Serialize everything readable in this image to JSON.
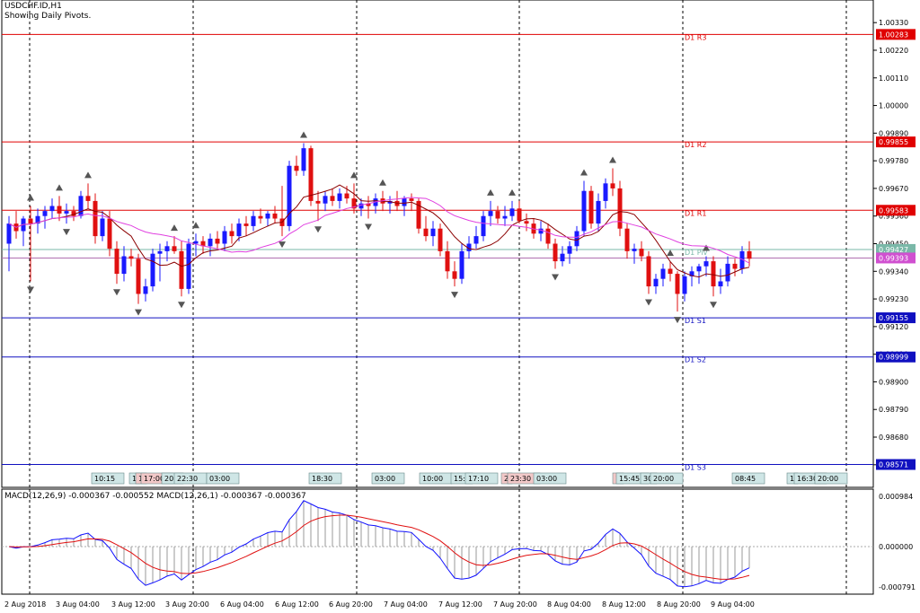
{
  "header": {
    "symbol_line": "USDCHF.ID,H1",
    "indicator_line": "Showing Daily Pivots."
  },
  "macd_header": "MACD(12,26,9) -0.000367 -0.000552 MACD(12,26,1) -0.000367 -0.000367",
  "colors": {
    "bull": "#1a1aff",
    "bear": "#e01010",
    "ma_fast": "#8b0000",
    "ma_slow": "#e040e0",
    "pivot_res": "#e00000",
    "pivot_sup": "#1010c0",
    "macd_main": "#1010ff",
    "macd_signal": "#e01010",
    "macd_hist": "#9a9a9a",
    "axis": "#000000"
  },
  "chart_data": [
    {
      "type": "candlestick",
      "symbol": "USDCHF.ID",
      "timeframe": "H1",
      "ylim": [
        0.9848,
        1.0042
      ],
      "y_ticks": [
        "1.00330",
        "1.00220",
        "1.00110",
        "1.00000",
        "0.99890",
        "0.99780",
        "0.99670",
        "0.99560",
        "0.99450",
        "0.99340",
        "0.99230",
        "0.99120",
        "0.99010",
        "0.98900",
        "0.98790",
        "0.98680",
        "0.98570"
      ],
      "x_labels": [
        "2 Aug 2018",
        "3 Aug 04:00",
        "3 Aug 12:00",
        "3 Aug 20:00",
        "6 Aug 04:00",
        "6 Aug 12:00",
        "6 Aug 20:00",
        "7 Aug 04:00",
        "7 Aug 12:00",
        "7 Aug 20:00",
        "8 Aug 04:00",
        "8 Aug 12:00",
        "8 Aug 20:00",
        "9 Aug 04:00"
      ],
      "pivots": [
        {
          "name": "D1 R3",
          "value": 1.00283,
          "label": "1.00283",
          "kind": "res"
        },
        {
          "name": "D1 R2",
          "value": 0.99855,
          "label": "0.99855",
          "kind": "res"
        },
        {
          "name": "D1 R1",
          "value": 0.99583,
          "label": "0.99583",
          "kind": "res"
        },
        {
          "name": "D1 Pivot",
          "value": 0.99427,
          "label": "0.99427",
          "kind": "piv"
        },
        {
          "name": "D1 S1",
          "value": 0.99155,
          "label": "0.99155",
          "kind": "sup"
        },
        {
          "name": "D1 S2",
          "value": 0.98999,
          "label": "0.98999",
          "kind": "sup"
        },
        {
          "name": "D1 S3",
          "value": 0.98571,
          "label": "0.98571",
          "kind": "sup"
        }
      ],
      "bid_label": "0.99393",
      "bid_value": 0.99393,
      "event_labels": [
        "10:15",
        "1",
        "1",
        "17:00",
        "20:",
        "22:30",
        "03:00",
        "18:30",
        "03:00",
        "10:00",
        "15:",
        "17:10",
        "2",
        "23:30",
        "03:00",
        "1",
        "15:45",
        "30",
        "20:00",
        "08:45",
        "1",
        "16:30",
        "20:00"
      ],
      "ohlc": [
        [
          0.9945,
          0.9956,
          0.9934,
          0.9953
        ],
        [
          0.9953,
          0.9958,
          0.9947,
          0.995
        ],
        [
          0.995,
          0.9956,
          0.9944,
          0.9955
        ],
        [
          0.9955,
          0.996,
          0.993,
          0.9953
        ],
        [
          0.9953,
          0.9959,
          0.9949,
          0.9956
        ],
        [
          0.9956,
          0.996,
          0.9951,
          0.9958
        ],
        [
          0.9958,
          0.9963,
          0.9955,
          0.996
        ],
        [
          0.996,
          0.9964,
          0.9954,
          0.9957
        ],
        [
          0.9957,
          0.9961,
          0.9953,
          0.9958
        ],
        [
          0.9958,
          0.996,
          0.9954,
          0.9956
        ],
        [
          0.9956,
          0.9966,
          0.9955,
          0.9964
        ],
        [
          0.9964,
          0.9969,
          0.9959,
          0.9962
        ],
        [
          0.9962,
          0.9965,
          0.9945,
          0.9948
        ],
        [
          0.9948,
          0.9958,
          0.9946,
          0.9955
        ],
        [
          0.9955,
          0.9958,
          0.994,
          0.9943
        ],
        [
          0.9943,
          0.9946,
          0.9929,
          0.9933
        ],
        [
          0.9933,
          0.9944,
          0.993,
          0.994
        ],
        [
          0.994,
          0.9943,
          0.9936,
          0.9939
        ],
        [
          0.9939,
          0.9941,
          0.9921,
          0.9925
        ],
        [
          0.9925,
          0.9931,
          0.9922,
          0.9928
        ],
        [
          0.9928,
          0.9943,
          0.9926,
          0.9941
        ],
        [
          0.9941,
          0.9945,
          0.993,
          0.9942
        ],
        [
          0.9942,
          0.9946,
          0.9938,
          0.9944
        ],
        [
          0.9944,
          0.9948,
          0.9941,
          0.9942
        ],
        [
          0.9942,
          0.9946,
          0.9924,
          0.9927
        ],
        [
          0.9927,
          0.9947,
          0.9925,
          0.9945
        ],
        [
          0.9945,
          0.9949,
          0.994,
          0.9946
        ],
        [
          0.9946,
          0.9948,
          0.9941,
          0.9944
        ],
        [
          0.9944,
          0.9949,
          0.994,
          0.9947
        ],
        [
          0.9947,
          0.995,
          0.9943,
          0.9945
        ],
        [
          0.9945,
          0.9952,
          0.9942,
          0.995
        ],
        [
          0.995,
          0.9953,
          0.9945,
          0.9948
        ],
        [
          0.9948,
          0.9955,
          0.9946,
          0.9953
        ],
        [
          0.9953,
          0.9956,
          0.9948,
          0.9952
        ],
        [
          0.9952,
          0.9958,
          0.995,
          0.9956
        ],
        [
          0.9956,
          0.9959,
          0.9953,
          0.9955
        ],
        [
          0.9955,
          0.9958,
          0.9952,
          0.9957
        ],
        [
          0.9957,
          0.996,
          0.9953,
          0.9955
        ],
        [
          0.9955,
          0.9968,
          0.9948,
          0.9952
        ],
        [
          0.9952,
          0.9978,
          0.995,
          0.9976
        ],
        [
          0.9976,
          0.998,
          0.9972,
          0.9974
        ],
        [
          0.9974,
          0.9985,
          0.9972,
          0.9983
        ],
        [
          0.9983,
          0.9984,
          0.996,
          0.9962
        ],
        [
          0.9962,
          0.9966,
          0.9954,
          0.9961
        ],
        [
          0.9961,
          0.9966,
          0.9958,
          0.9964
        ],
        [
          0.9964,
          0.9967,
          0.996,
          0.9962
        ],
        [
          0.9962,
          0.9967,
          0.9959,
          0.9965
        ],
        [
          0.9965,
          0.9968,
          0.9961,
          0.9963
        ],
        [
          0.9963,
          0.9969,
          0.9957,
          0.9959
        ],
        [
          0.9959,
          0.9963,
          0.9956,
          0.9961
        ],
        [
          0.9961,
          0.9964,
          0.9955,
          0.996
        ],
        [
          0.996,
          0.9965,
          0.9957,
          0.9963
        ],
        [
          0.9963,
          0.9966,
          0.9958,
          0.9961
        ],
        [
          0.9961,
          0.9964,
          0.9957,
          0.9962
        ],
        [
          0.9962,
          0.9966,
          0.9958,
          0.996
        ],
        [
          0.996,
          0.9964,
          0.9956,
          0.9963
        ],
        [
          0.9963,
          0.9965,
          0.9958,
          0.9962
        ],
        [
          0.9962,
          0.9963,
          0.9949,
          0.9951
        ],
        [
          0.9951,
          0.9956,
          0.9946,
          0.9948
        ],
        [
          0.9948,
          0.9954,
          0.9944,
          0.9951
        ],
        [
          0.9951,
          0.9953,
          0.994,
          0.9942
        ],
        [
          0.9942,
          0.9946,
          0.9931,
          0.9934
        ],
        [
          0.9934,
          0.9938,
          0.9928,
          0.9931
        ],
        [
          0.9931,
          0.9945,
          0.9929,
          0.9942
        ],
        [
          0.9942,
          0.9948,
          0.9939,
          0.9945
        ],
        [
          0.9945,
          0.9952,
          0.9943,
          0.9948
        ],
        [
          0.9948,
          0.9958,
          0.9946,
          0.9956
        ],
        [
          0.9956,
          0.9962,
          0.9952,
          0.9958
        ],
        [
          0.9958,
          0.996,
          0.9953,
          0.9955
        ],
        [
          0.9955,
          0.996,
          0.9952,
          0.9956
        ],
        [
          0.9956,
          0.9962,
          0.9954,
          0.9959
        ],
        [
          0.9959,
          0.9962,
          0.9953,
          0.9954
        ],
        [
          0.9954,
          0.9957,
          0.995,
          0.9953
        ],
        [
          0.9953,
          0.9955,
          0.9947,
          0.9949
        ],
        [
          0.9949,
          0.9954,
          0.9946,
          0.9951
        ],
        [
          0.9951,
          0.9953,
          0.9943,
          0.9945
        ],
        [
          0.9945,
          0.9947,
          0.9935,
          0.9938
        ],
        [
          0.9938,
          0.9944,
          0.9936,
          0.9941
        ],
        [
          0.9941,
          0.9946,
          0.9937,
          0.9944
        ],
        [
          0.9944,
          0.9952,
          0.9942,
          0.995
        ],
        [
          0.995,
          0.997,
          0.9948,
          0.9966
        ],
        [
          0.9966,
          0.9968,
          0.9951,
          0.9953
        ],
        [
          0.9953,
          0.9965,
          0.995,
          0.9962
        ],
        [
          0.9962,
          0.9971,
          0.9959,
          0.9969
        ],
        [
          0.9969,
          0.9975,
          0.9964,
          0.9967
        ],
        [
          0.9967,
          0.997,
          0.9948,
          0.9951
        ],
        [
          0.9951,
          0.9953,
          0.9939,
          0.9942
        ],
        [
          0.9942,
          0.9945,
          0.9937,
          0.9943
        ],
        [
          0.9943,
          0.9946,
          0.9938,
          0.994
        ],
        [
          0.994,
          0.9942,
          0.9925,
          0.9928
        ],
        [
          0.9928,
          0.9933,
          0.9925,
          0.9931
        ],
        [
          0.9931,
          0.9937,
          0.9928,
          0.9935
        ],
        [
          0.9935,
          0.9938,
          0.993,
          0.9933
        ],
        [
          0.9933,
          0.9934,
          0.9918,
          0.9925
        ],
        [
          0.9925,
          0.9934,
          0.9922,
          0.9932
        ],
        [
          0.9932,
          0.9936,
          0.9928,
          0.9934
        ],
        [
          0.9934,
          0.9937,
          0.9929,
          0.9936
        ],
        [
          0.9936,
          0.994,
          0.9932,
          0.9938
        ],
        [
          0.9938,
          0.994,
          0.9924,
          0.9928
        ],
        [
          0.9928,
          0.9935,
          0.9925,
          0.993
        ],
        [
          0.993,
          0.994,
          0.9928,
          0.9937
        ],
        [
          0.9937,
          0.9939,
          0.9932,
          0.9935
        ],
        [
          0.9935,
          0.9944,
          0.9933,
          0.9942
        ],
        [
          0.9942,
          0.9946,
          0.9936,
          0.9939
        ]
      ]
    },
    {
      "type": "macd",
      "title": "MACD(12,26,9) -0.000367 -0.000552 MACD(12,26,1) -0.000367 -0.000367",
      "ylim": [
        -0.000791,
        0.000984
      ],
      "y_ticks": [
        "0.000984",
        "0.000000",
        "-0.000791"
      ]
    }
  ]
}
